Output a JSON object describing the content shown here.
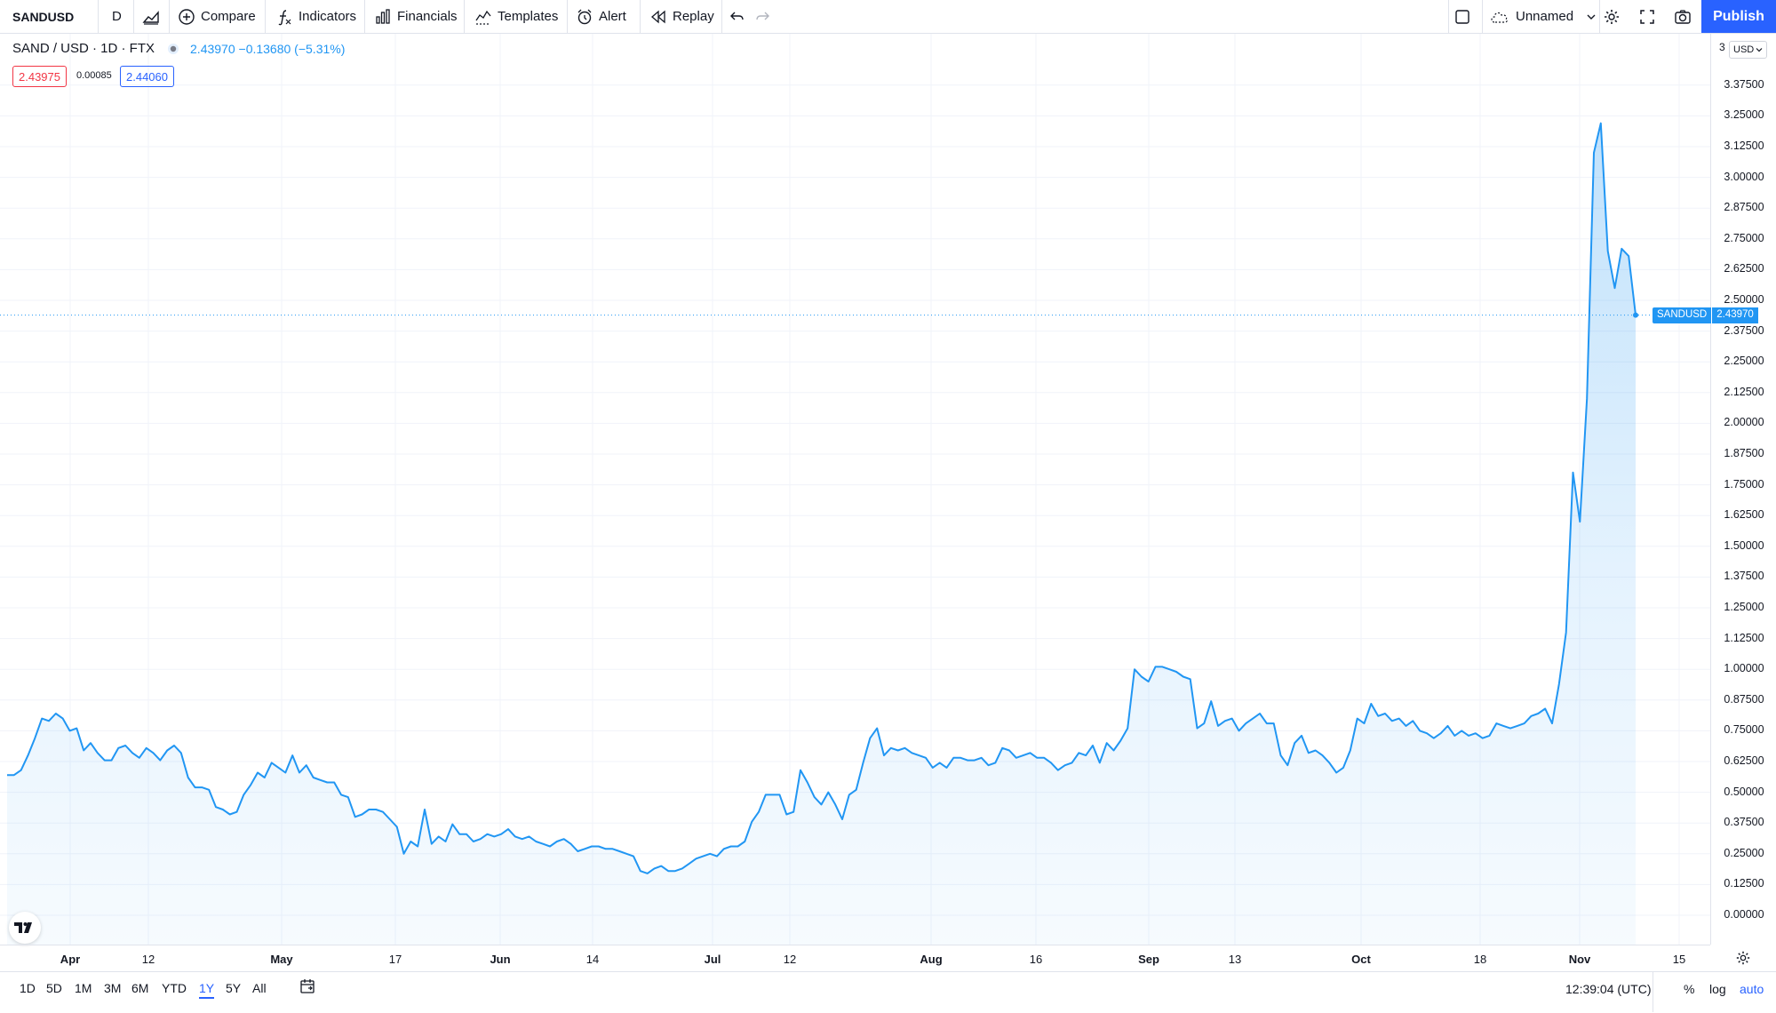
{
  "toolbar": {
    "symbol": "SANDUSD",
    "interval": "D",
    "compare": "Compare",
    "indicators": "Indicators",
    "financials": "Financials",
    "templates": "Templates",
    "alert": "Alert",
    "replay": "Replay",
    "layout_name": "Unnamed",
    "publish": "Publish"
  },
  "legend": {
    "title": "SAND / USD · 1D · FTX",
    "change": "2.43970 −0.13680 (−5.31%)",
    "bid": "2.43975",
    "spread": "0.00085",
    "ask": "2.44060"
  },
  "price_axis": {
    "currency": "USD",
    "top_partial": "3",
    "last_symbol": "SANDUSD",
    "last_price": "2.43970",
    "ticks": [
      "3.37500",
      "3.25000",
      "3.12500",
      "3.00000",
      "2.87500",
      "2.75000",
      "2.62500",
      "2.50000",
      "2.37500",
      "2.25000",
      "2.12500",
      "2.00000",
      "1.87500",
      "1.75000",
      "1.62500",
      "1.50000",
      "1.37500",
      "1.25000",
      "1.12500",
      "1.00000",
      "0.87500",
      "0.75000",
      "0.62500",
      "0.50000",
      "0.37500",
      "0.25000",
      "0.12500",
      "0.00000"
    ]
  },
  "time_axis": [
    {
      "label": "Apr",
      "bold": true
    },
    {
      "label": "12",
      "bold": false
    },
    {
      "label": "May",
      "bold": true
    },
    {
      "label": "17",
      "bold": false
    },
    {
      "label": "Jun",
      "bold": true
    },
    {
      "label": "14",
      "bold": false
    },
    {
      "label": "Jul",
      "bold": true
    },
    {
      "label": "12",
      "bold": false
    },
    {
      "label": "Aug",
      "bold": true
    },
    {
      "label": "16",
      "bold": false
    },
    {
      "label": "Sep",
      "bold": true
    },
    {
      "label": "13",
      "bold": false
    },
    {
      "label": "Oct",
      "bold": true
    },
    {
      "label": "18",
      "bold": false
    },
    {
      "label": "Nov",
      "bold": true
    },
    {
      "label": "15",
      "bold": false
    }
  ],
  "ranges": [
    "1D",
    "5D",
    "1M",
    "3M",
    "6M",
    "YTD",
    "1Y",
    "5Y",
    "All"
  ],
  "active_range": "1Y",
  "clock": "12:39:04 (UTC)",
  "scale_opts": {
    "percent": "%",
    "log": "log",
    "auto": "auto"
  },
  "colors": {
    "line": "#2196f3",
    "accent": "#2962ff",
    "bid": "#f23645"
  },
  "chart_data": {
    "type": "area",
    "ylim": [
      0,
      3.44
    ],
    "series": [
      {
        "values": [
          0.57,
          0.57,
          0.59,
          0.65,
          0.72,
          0.8,
          0.79,
          0.82,
          0.8,
          0.75,
          0.76,
          0.67,
          0.7,
          0.66,
          0.63,
          0.63,
          0.68,
          0.69,
          0.66,
          0.64,
          0.68,
          0.66,
          0.63,
          0.67,
          0.69,
          0.66,
          0.56,
          0.52,
          0.52,
          0.51,
          0.44,
          0.43,
          0.41,
          0.42,
          0.49,
          0.53,
          0.58,
          0.56,
          0.62,
          0.6,
          0.58,
          0.65,
          0.58,
          0.61,
          0.56,
          0.55,
          0.54,
          0.54,
          0.49,
          0.48,
          0.4,
          0.41,
          0.43,
          0.43,
          0.42,
          0.39,
          0.36,
          0.25,
          0.3,
          0.28,
          0.43,
          0.29,
          0.32,
          0.3,
          0.37,
          0.33,
          0.33,
          0.3,
          0.31,
          0.33,
          0.32,
          0.33,
          0.35,
          0.32,
          0.31,
          0.32,
          0.3,
          0.29,
          0.28,
          0.3,
          0.31,
          0.29,
          0.26,
          0.27,
          0.28,
          0.28,
          0.27,
          0.27,
          0.26,
          0.25,
          0.24,
          0.18,
          0.17,
          0.19,
          0.2,
          0.18,
          0.18,
          0.19,
          0.21,
          0.23,
          0.24,
          0.25,
          0.24,
          0.27,
          0.28,
          0.28,
          0.3,
          0.38,
          0.42,
          0.49,
          0.49,
          0.49,
          0.41,
          0.42,
          0.59,
          0.54,
          0.48,
          0.45,
          0.5,
          0.45,
          0.39,
          0.49,
          0.51,
          0.62,
          0.72,
          0.76,
          0.65,
          0.68,
          0.67,
          0.68,
          0.66,
          0.65,
          0.64,
          0.6,
          0.62,
          0.6,
          0.64,
          0.64,
          0.63,
          0.63,
          0.64,
          0.61,
          0.62,
          0.68,
          0.67,
          0.64,
          0.65,
          0.66,
          0.64,
          0.64,
          0.62,
          0.59,
          0.61,
          0.62,
          0.66,
          0.65,
          0.69,
          0.62,
          0.7,
          0.67,
          0.71,
          0.76,
          1.0,
          0.97,
          0.95,
          1.01,
          1.01,
          1.0,
          0.99,
          0.97,
          0.96,
          0.76,
          0.78,
          0.87,
          0.77,
          0.79,
          0.8,
          0.75,
          0.78,
          0.8,
          0.82,
          0.78,
          0.78,
          0.65,
          0.61,
          0.7,
          0.73,
          0.66,
          0.67,
          0.65,
          0.62,
          0.58,
          0.6,
          0.67,
          0.8,
          0.78,
          0.86,
          0.81,
          0.82,
          0.79,
          0.8,
          0.77,
          0.79,
          0.75,
          0.74,
          0.72,
          0.74,
          0.77,
          0.73,
          0.75,
          0.73,
          0.74,
          0.72,
          0.73,
          0.78,
          0.77,
          0.76,
          0.77,
          0.78,
          0.81,
          0.82,
          0.84,
          0.78,
          0.94,
          1.15,
          1.8,
          1.6,
          2.1,
          3.1,
          3.22,
          2.7,
          2.55,
          2.71,
          2.68,
          2.44
        ]
      }
    ]
  }
}
